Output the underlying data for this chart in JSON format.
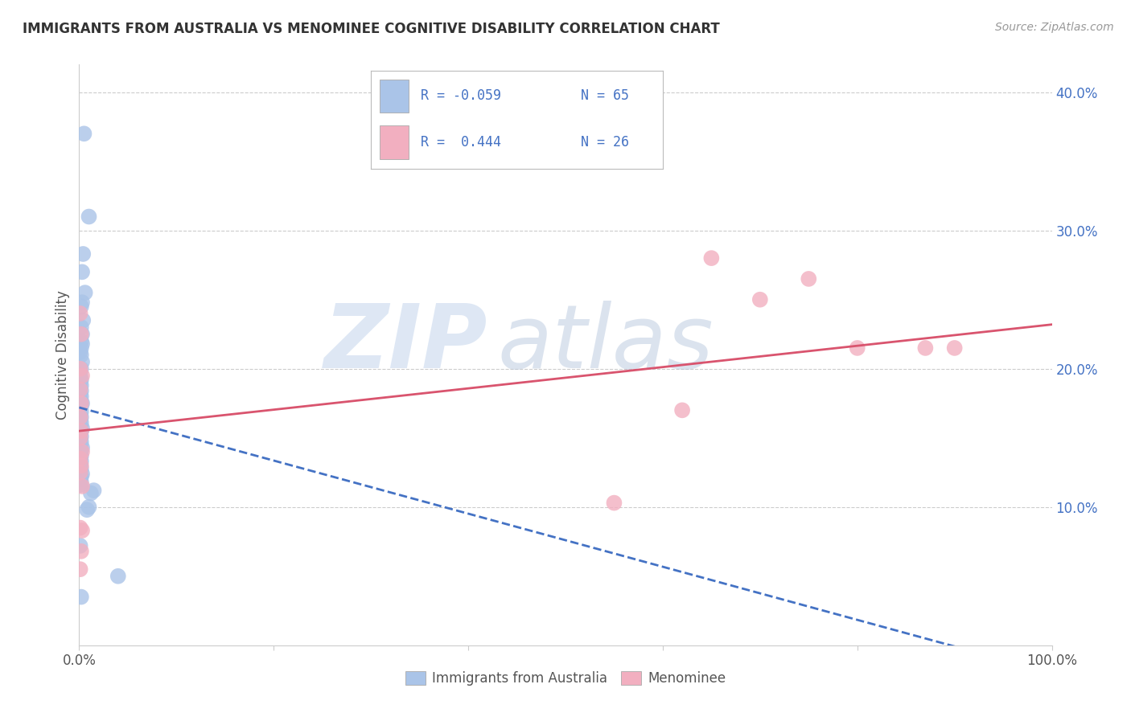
{
  "title": "IMMIGRANTS FROM AUSTRALIA VS MENOMINEE COGNITIVE DISABILITY CORRELATION CHART",
  "source": "Source: ZipAtlas.com",
  "ylabel": "Cognitive Disability",
  "xlim": [
    0,
    1.0
  ],
  "ylim": [
    0,
    0.42
  ],
  "blue_color": "#aac4e8",
  "pink_color": "#f2afc0",
  "line_blue_color": "#4472c4",
  "line_pink_color": "#d9546e",
  "text_color": "#4472c4",
  "grid_color": "#cccccc",
  "blue_points_x": [
    0.005,
    0.01,
    0.004,
    0.003,
    0.006,
    0.003,
    0.002,
    0.004,
    0.002,
    0.003,
    0.002,
    0.003,
    0.002,
    0.001,
    0.002,
    0.003,
    0.002,
    0.001,
    0.001,
    0.002,
    0.001,
    0.002,
    0.001,
    0.002,
    0.001,
    0.002,
    0.001,
    0.002,
    0.003,
    0.002,
    0.001,
    0.002,
    0.001,
    0.002,
    0.001,
    0.002,
    0.001,
    0.003,
    0.002,
    0.001,
    0.002,
    0.001,
    0.002,
    0.001,
    0.003,
    0.002,
    0.001,
    0.002,
    0.001,
    0.002,
    0.001,
    0.002,
    0.001,
    0.003,
    0.002,
    0.001,
    0.002,
    0.001,
    0.015,
    0.012,
    0.01,
    0.008,
    0.04,
    0.001,
    0.002
  ],
  "blue_points_y": [
    0.37,
    0.31,
    0.283,
    0.27,
    0.255,
    0.248,
    0.245,
    0.235,
    0.23,
    0.225,
    0.22,
    0.218,
    0.215,
    0.212,
    0.21,
    0.205,
    0.2,
    0.198,
    0.195,
    0.192,
    0.19,
    0.188,
    0.186,
    0.184,
    0.182,
    0.18,
    0.178,
    0.176,
    0.175,
    0.173,
    0.171,
    0.169,
    0.167,
    0.165,
    0.163,
    0.161,
    0.159,
    0.157,
    0.155,
    0.153,
    0.151,
    0.149,
    0.147,
    0.145,
    0.143,
    0.141,
    0.139,
    0.137,
    0.135,
    0.133,
    0.131,
    0.128,
    0.126,
    0.124,
    0.122,
    0.12,
    0.118,
    0.116,
    0.112,
    0.11,
    0.1,
    0.098,
    0.05,
    0.072,
    0.035
  ],
  "pink_points_x": [
    0.001,
    0.002,
    0.001,
    0.003,
    0.001,
    0.002,
    0.001,
    0.002,
    0.001,
    0.003,
    0.001,
    0.002,
    0.001,
    0.003,
    0.001,
    0.002,
    0.001,
    0.55,
    0.62,
    0.65,
    0.7,
    0.75,
    0.8,
    0.87,
    0.9,
    0.003
  ],
  "pink_points_y": [
    0.24,
    0.225,
    0.2,
    0.195,
    0.185,
    0.175,
    0.165,
    0.155,
    0.15,
    0.14,
    0.135,
    0.13,
    0.125,
    0.115,
    0.085,
    0.068,
    0.055,
    0.103,
    0.17,
    0.28,
    0.25,
    0.265,
    0.215,
    0.215,
    0.215,
    0.083
  ],
  "blue_trend_y_start": 0.172,
  "blue_trend_y_end": -0.02,
  "pink_trend_y_start": 0.155,
  "pink_trend_y_end": 0.232
}
